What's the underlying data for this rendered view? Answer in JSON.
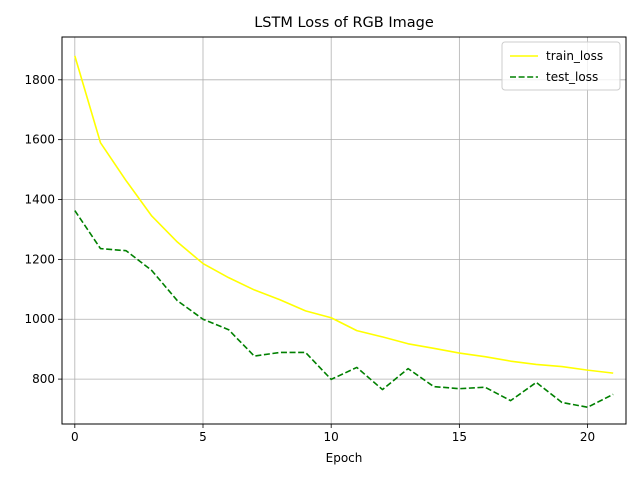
{
  "chart_data": {
    "type": "line",
    "title": "LSTM Loss of RGB Image",
    "xlabel": "Epoch",
    "ylabel": "",
    "xlim": [
      -0.5,
      21.5
    ],
    "ylim": [
      650,
      1943
    ],
    "xticks": [
      0,
      5,
      10,
      15,
      20
    ],
    "yticks": [
      800,
      1000,
      1200,
      1400,
      1600,
      1800
    ],
    "grid": true,
    "legend": "top-right",
    "x": [
      0,
      1,
      2,
      3,
      4,
      5,
      6,
      7,
      8,
      9,
      10,
      11,
      12,
      13,
      14,
      15,
      16,
      17,
      18,
      19,
      20,
      21
    ],
    "series": [
      {
        "name": "train_loss",
        "color": "#ffff00",
        "style": "solid",
        "values": [
          1880,
          1590,
          1463,
          1345,
          1258,
          1186,
          1139,
          1098,
          1065,
          1028,
          1005,
          962,
          941,
          918,
          903,
          887,
          875,
          860,
          849,
          842,
          830,
          820
        ]
      },
      {
        "name": "test_loss",
        "color": "#008000",
        "style": "dashed",
        "values": [
          1363,
          1236,
          1229,
          1163,
          1062,
          1000,
          965,
          877,
          889,
          889,
          799,
          839,
          765,
          835,
          775,
          768,
          773,
          728,
          789,
          722,
          706,
          749
        ]
      }
    ]
  }
}
